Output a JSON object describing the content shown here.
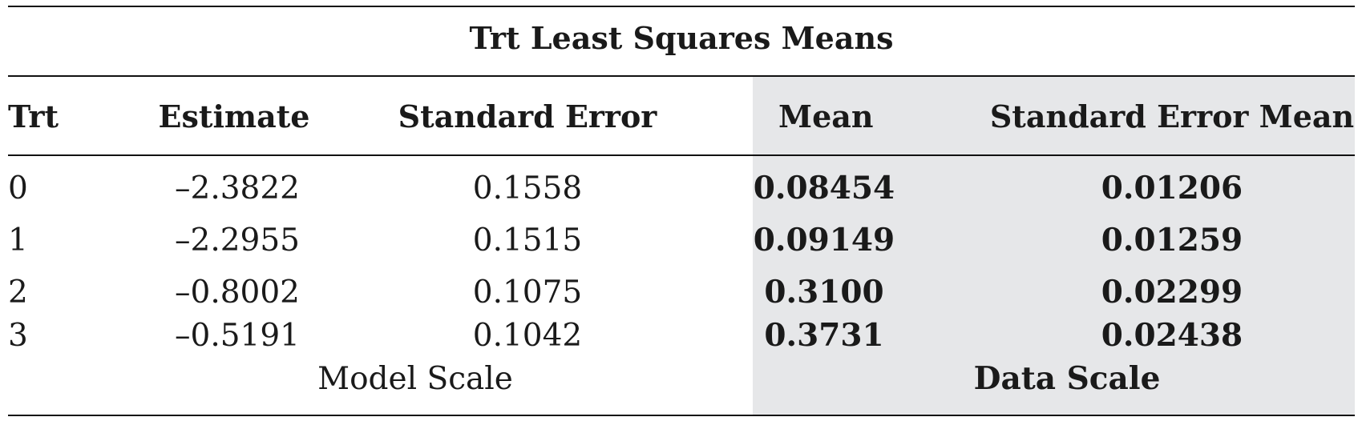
{
  "table": {
    "title": "Trt Least Squares Means",
    "headers": [
      "Trt",
      "Estimate",
      "Standard Error",
      "Mean",
      "Standard Error Mean"
    ],
    "rows": [
      [
        "0",
        "–2.3822",
        "0.1558",
        "0.08454",
        "0.01206"
      ],
      [
        "1",
        "–2.2955",
        "0.1515",
        "0.09149",
        "0.01259"
      ],
      [
        "2",
        "–0.8002",
        "0.1075",
        "0.3100",
        "0.02299"
      ],
      [
        "3",
        "–0.5191",
        "0.1042",
        "0.3731",
        "0.02438"
      ]
    ],
    "footer": {
      "model_scale": "Model Scale",
      "data_scale": "Data Scale"
    },
    "shade_color": "#e6e7e9"
  }
}
